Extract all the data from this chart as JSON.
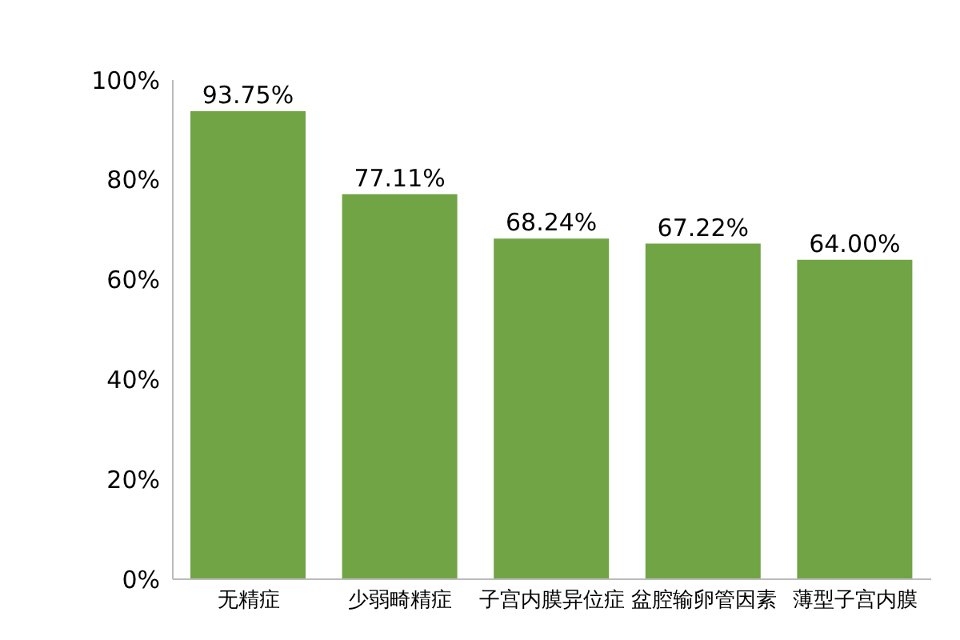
{
  "chart_data": {
    "type": "bar",
    "categories": [
      "无精症",
      "少弱畸精症",
      "子宫内膜异位症",
      "盆腔输卵管因素",
      "薄型子宫内膜"
    ],
    "values": [
      93.75,
      77.11,
      68.24,
      67.22,
      64.0
    ],
    "value_labels": [
      "93.75%",
      "77.11%",
      "68.24%",
      "67.22%",
      "64.00%"
    ],
    "color": "#70a444",
    "ylim": [
      0,
      100
    ],
    "yticks": [
      {
        "value": 0,
        "label": "0%"
      },
      {
        "value": 20,
        "label": "20%"
      },
      {
        "value": 40,
        "label": "40%"
      },
      {
        "value": 60,
        "label": "60%"
      },
      {
        "value": 80,
        "label": "80%"
      },
      {
        "value": 100,
        "label": "100%"
      }
    ]
  }
}
